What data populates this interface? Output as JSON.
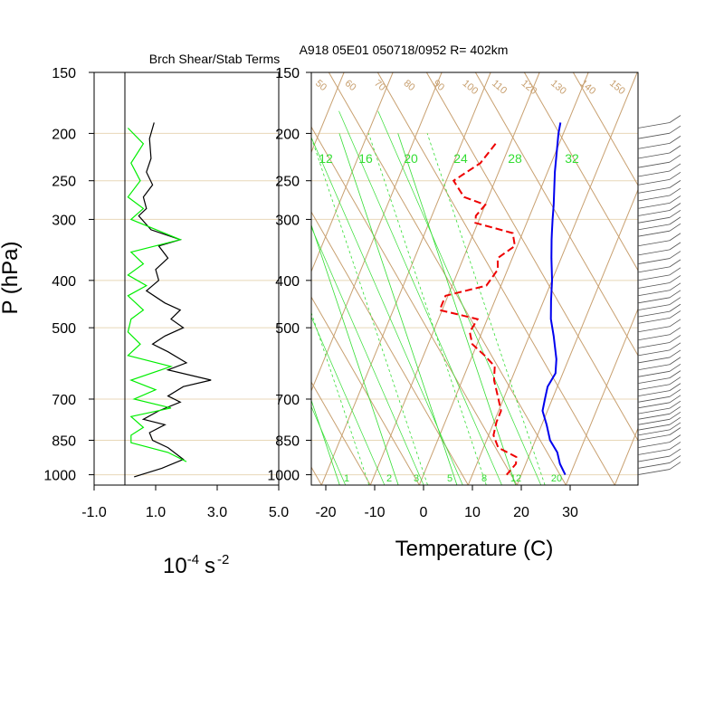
{
  "chart_data": [
    {
      "type": "line",
      "title": "Brch Shear/Stab Terms",
      "xlabel": "10",
      "xlabel_exp": "-4",
      "xlabel_unit": "s",
      "xlabel_unit_exp": "-2",
      "ylabel": "P (hPa)",
      "y_scale": "log",
      "ylim": [
        1050,
        150
      ],
      "xlim": [
        -1.0,
        5.0
      ],
      "xticks": [
        "-1.0",
        "1.0",
        "3.0",
        "5.0"
      ],
      "xtick_values": [
        -1,
        1,
        3,
        5
      ],
      "yticks": [
        "150",
        "200",
        "250",
        "300",
        "400",
        "500",
        "700",
        "850",
        "1000"
      ],
      "ytick_values": [
        150,
        200,
        250,
        300,
        400,
        500,
        700,
        850,
        1000
      ],
      "zero_line": 0,
      "series": [
        {
          "color": "#000000",
          "points": [
            [
              0.95,
              190
            ],
            [
              0.8,
              205
            ],
            [
              0.85,
              225
            ],
            [
              0.7,
              240
            ],
            [
              0.9,
              255
            ],
            [
              0.6,
              270
            ],
            [
              0.7,
              285
            ],
            [
              0.45,
              295
            ],
            [
              0.85,
              315
            ],
            [
              1.8,
              330
            ],
            [
              1.1,
              340
            ],
            [
              1.4,
              360
            ],
            [
              1.0,
              380
            ],
            [
              1.1,
              400
            ],
            [
              0.7,
              420
            ],
            [
              1.3,
              445
            ],
            [
              1.8,
              460
            ],
            [
              1.5,
              480
            ],
            [
              1.9,
              500
            ],
            [
              1.3,
              520
            ],
            [
              0.9,
              540
            ],
            [
              1.4,
              560
            ],
            [
              2.0,
              590
            ],
            [
              1.4,
              610
            ],
            [
              2.8,
              640
            ],
            [
              1.9,
              660
            ],
            [
              1.4,
              690
            ],
            [
              1.8,
              710
            ],
            [
              1.1,
              740
            ],
            [
              0.6,
              770
            ],
            [
              1.3,
              790
            ],
            [
              0.8,
              820
            ],
            [
              0.9,
              850
            ],
            [
              1.4,
              880
            ],
            [
              1.9,
              930
            ],
            [
              1.2,
              970
            ],
            [
              0.3,
              1010
            ]
          ]
        },
        {
          "color": "#00ee00",
          "points": [
            [
              0.1,
              195
            ],
            [
              0.6,
              210
            ],
            [
              0.2,
              230
            ],
            [
              0.5,
              250
            ],
            [
              0.1,
              270
            ],
            [
              0.6,
              285
            ],
            [
              0.2,
              300
            ],
            [
              1.8,
              330
            ],
            [
              0.2,
              350
            ],
            [
              0.6,
              370
            ],
            [
              0.1,
              390
            ],
            [
              0.7,
              410
            ],
            [
              0.1,
              430
            ],
            [
              0.6,
              460
            ],
            [
              0.2,
              480
            ],
            [
              0.1,
              510
            ],
            [
              0.5,
              540
            ],
            [
              0.1,
              570
            ],
            [
              1.5,
              600
            ],
            [
              0.2,
              640
            ],
            [
              1.0,
              670
            ],
            [
              0.3,
              700
            ],
            [
              1.5,
              730
            ],
            [
              0.2,
              760
            ],
            [
              0.6,
              800
            ],
            [
              0.2,
              830
            ],
            [
              0.2,
              860
            ],
            [
              1.4,
              900
            ],
            [
              2.0,
              940
            ]
          ]
        }
      ]
    },
    {
      "type": "line",
      "subtype": "skew-t log-p",
      "title": "A918 05E01 050718/0952 R= 402km",
      "xlabel": "Temperature (C)",
      "ylabel": "",
      "y_scale": "log",
      "ylim": [
        1050,
        150
      ],
      "xlim": [
        -25,
        40
      ],
      "xticks": [
        "-20",
        "-10",
        "0",
        "10",
        "20",
        "30"
      ],
      "xtick_values": [
        -20,
        -10,
        0,
        10,
        20,
        30
      ],
      "yticks": [
        "150",
        "200",
        "250",
        "300",
        "400",
        "500",
        "700",
        "850",
        "1000"
      ],
      "ytick_values": [
        150,
        200,
        250,
        300,
        400,
        500,
        700,
        850,
        1000
      ],
      "mixing_ratio_labels": [
        "12",
        "16",
        "20",
        "24",
        "28",
        "32"
      ],
      "bottom_mixing_ratio_labels": [
        "1",
        "2",
        "3",
        "5",
        "8",
        "12",
        "20"
      ],
      "theta_labels": [
        "50",
        "60",
        "70",
        "80",
        "90",
        "100",
        "110",
        "120",
        "130",
        "140",
        "150"
      ],
      "series": [
        {
          "name": "temperature",
          "color": "#0000ee",
          "style": "solid",
          "points": [
            [
              -1.5,
              190
            ],
            [
              -1.0,
              200
            ],
            [
              1.5,
              240
            ],
            [
              4.0,
              280
            ],
            [
              5.0,
              300
            ],
            [
              6.0,
              320
            ],
            [
              6.5,
              330
            ],
            [
              8.0,
              360
            ],
            [
              10.0,
              400
            ],
            [
              11.5,
              440
            ],
            [
              13.0,
              480
            ],
            [
              15.0,
              520
            ],
            [
              17.5,
              580
            ],
            [
              18.5,
              620
            ],
            [
              18.0,
              660
            ],
            [
              18.5,
              700
            ],
            [
              19.0,
              740
            ],
            [
              21.0,
              790
            ],
            [
              23.0,
              850
            ],
            [
              25.5,
              900
            ],
            [
              27.0,
              950
            ],
            [
              29.0,
              1000
            ]
          ]
        },
        {
          "name": "dewpoint",
          "color": "#ee0000",
          "style": "dashed",
          "points": [
            [
              -13.0,
              210
            ],
            [
              -14.5,
              230
            ],
            [
              -18.5,
              250
            ],
            [
              -15.0,
              270
            ],
            [
              -10.0,
              280
            ],
            [
              -11.0,
              295
            ],
            [
              -10.5,
              305
            ],
            [
              -2.0,
              320
            ],
            [
              -0.5,
              340
            ],
            [
              -3.0,
              360
            ],
            [
              -2.0,
              380
            ],
            [
              -3.0,
              410
            ],
            [
              -10.5,
              430
            ],
            [
              -10.5,
              460
            ],
            [
              -2.0,
              480
            ],
            [
              -2.5,
              510
            ],
            [
              -1.0,
              540
            ],
            [
              2.5,
              570
            ],
            [
              5.5,
              600
            ],
            [
              6.5,
              640
            ],
            [
              9.0,
              700
            ],
            [
              10.5,
              740
            ],
            [
              10.5,
              780
            ],
            [
              11.0,
              830
            ],
            [
              13.0,
              880
            ],
            [
              17.5,
              920
            ],
            [
              18.0,
              950
            ],
            [
              17.0,
              1000
            ]
          ]
        }
      ],
      "wind_barbs": [
        {
          "p": 195
        },
        {
          "p": 205
        },
        {
          "p": 215
        },
        {
          "p": 225
        },
        {
          "p": 235
        },
        {
          "p": 245
        },
        {
          "p": 255
        },
        {
          "p": 265
        },
        {
          "p": 275
        },
        {
          "p": 285
        },
        {
          "p": 295
        },
        {
          "p": 305
        },
        {
          "p": 315
        },
        {
          "p": 325
        },
        {
          "p": 340
        },
        {
          "p": 355
        },
        {
          "p": 370
        },
        {
          "p": 385
        },
        {
          "p": 400
        },
        {
          "p": 415
        },
        {
          "p": 430
        },
        {
          "p": 445
        },
        {
          "p": 460
        },
        {
          "p": 475
        },
        {
          "p": 490
        },
        {
          "p": 510
        },
        {
          "p": 530
        },
        {
          "p": 550
        },
        {
          "p": 570
        },
        {
          "p": 590
        },
        {
          "p": 610
        },
        {
          "p": 630
        },
        {
          "p": 650
        },
        {
          "p": 670
        },
        {
          "p": 690
        },
        {
          "p": 710
        },
        {
          "p": 730
        },
        {
          "p": 750
        },
        {
          "p": 770
        },
        {
          "p": 790
        },
        {
          "p": 810
        },
        {
          "p": 830
        },
        {
          "p": 850
        },
        {
          "p": 880
        },
        {
          "p": 910
        },
        {
          "p": 940
        },
        {
          "p": 970
        },
        {
          "p": 1000
        }
      ]
    }
  ],
  "colors": {
    "background": "#ffffff",
    "axes": "#000000",
    "isobar": "#e8d7b8",
    "adiabat": "#c8a070",
    "mixing_ratio": "#33dd33",
    "zero_line": "#000000"
  }
}
